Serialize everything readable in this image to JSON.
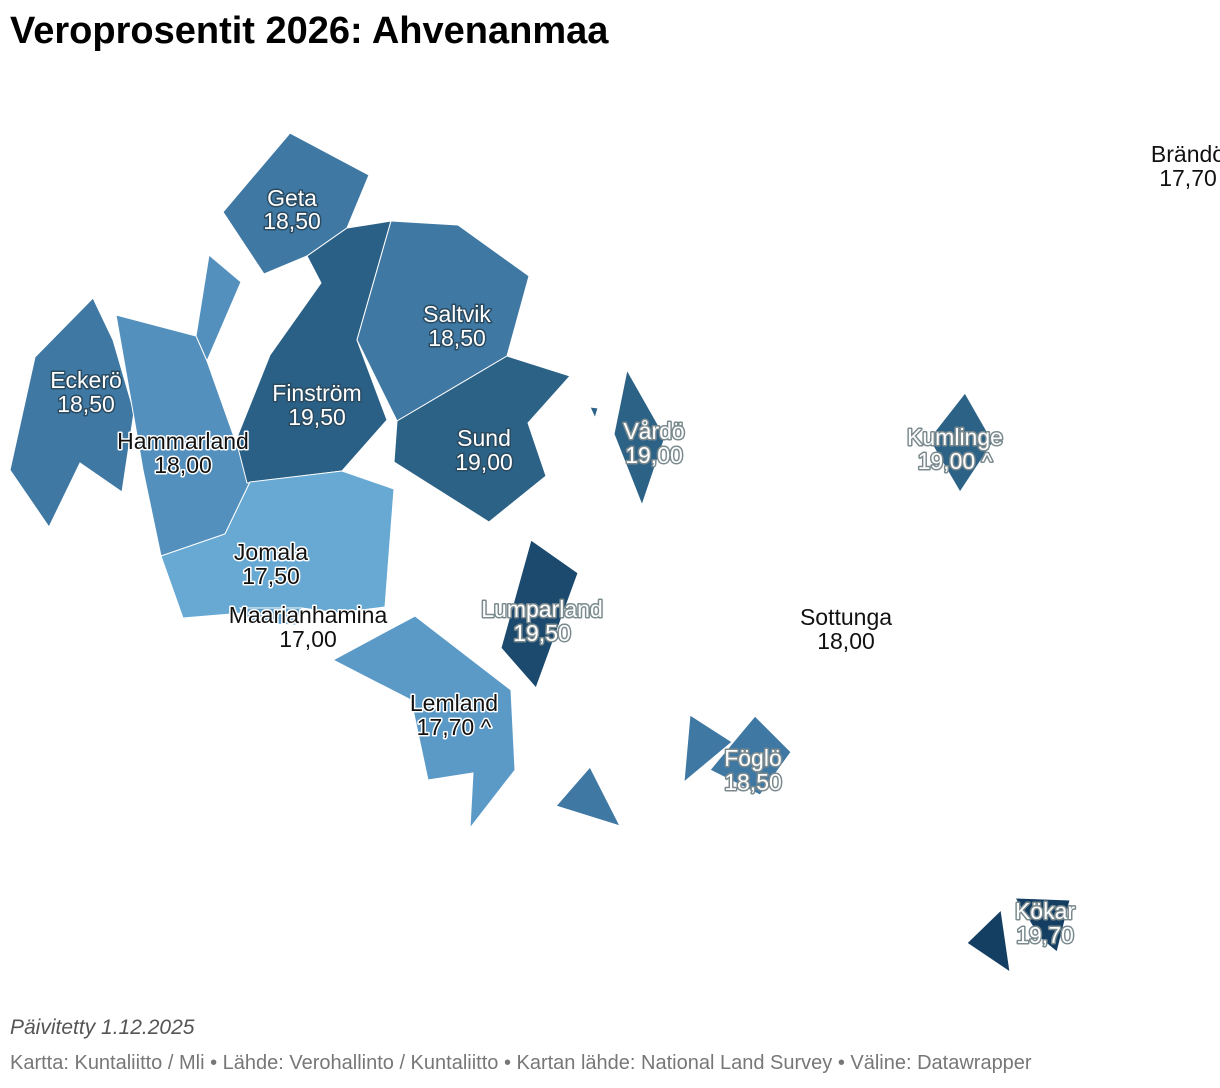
{
  "title": "Veroprosentit 2026: Ahvenanmaa",
  "colors": {
    "17,00": "#5a9dcb",
    "17,50": "#67a9d3",
    "17,70": "#5b9ac7",
    "18,00": "#5490bd",
    "18,50": "#3f78a3",
    "19,00": "#2d6287",
    "19,50": "#2b6086",
    "19,50_dark": "#1c4a6e",
    "19,70": "#143f63"
  },
  "municipalities": [
    {
      "name": "Geta",
      "rate": "18,50"
    },
    {
      "name": "Saltvik",
      "rate": "18,50"
    },
    {
      "name": "Eckerö",
      "rate": "18,50"
    },
    {
      "name": "Finström",
      "rate": "19,50"
    },
    {
      "name": "Hammarland",
      "rate": "18,00"
    },
    {
      "name": "Sund",
      "rate": "19,00"
    },
    {
      "name": "Vårdö",
      "rate": "19,00"
    },
    {
      "name": "Kumlinge",
      "rate": "19,00 ^"
    },
    {
      "name": "Jomala",
      "rate": "17,50"
    },
    {
      "name": "Lumparland",
      "rate": "19,50"
    },
    {
      "name": "Maarianhamina",
      "rate": "17,00"
    },
    {
      "name": "Sottunga",
      "rate": "18,00"
    },
    {
      "name": "Lemland",
      "rate": "17,70 ^"
    },
    {
      "name": "Föglö",
      "rate": "18,50"
    },
    {
      "name": "Kökar",
      "rate": "19,70"
    },
    {
      "name": "Brändö",
      "rate": "17,70"
    }
  ],
  "footer": {
    "updated": "Päivitetty 1.12.2025",
    "source": "Kartta: Kuntaliitto / Mli • Lähde: Verohallinto / Kuntaliitto • Kartan lähde: National Land Survey • Väline: Datawrapper"
  }
}
